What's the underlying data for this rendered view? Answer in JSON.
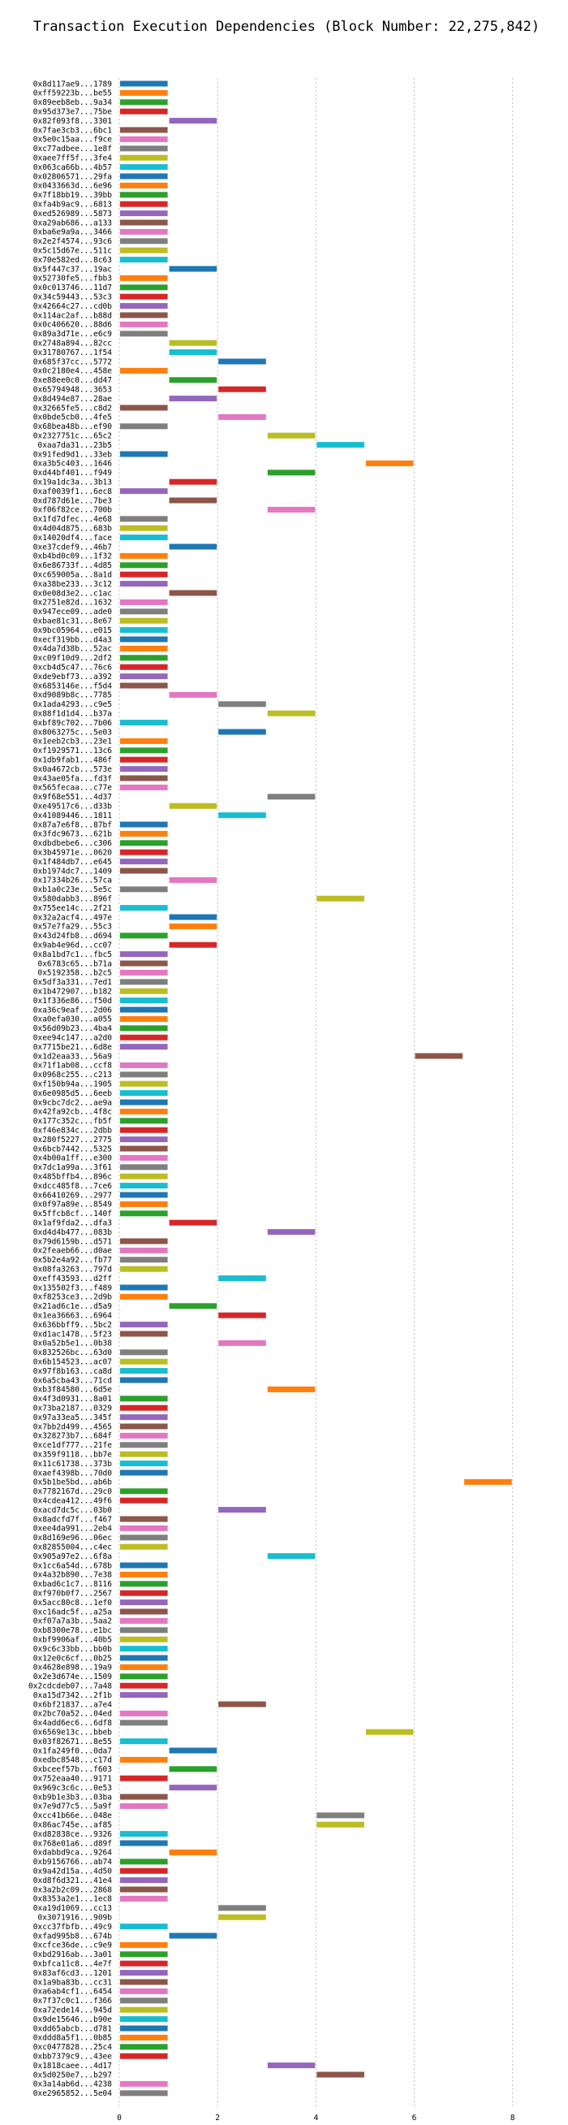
{
  "chart_data": {
    "type": "bar",
    "orientation": "horizontal",
    "title": "Transaction Execution Dependencies (Block Number: 22,275,842)",
    "xlabel": "",
    "ylabel": "",
    "xlim": [
      0,
      8.5
    ],
    "xticks": [
      0,
      2,
      4,
      6,
      8
    ],
    "grid": "vertical",
    "colors": [
      "#1f77b4",
      "#ff7f0e",
      "#2ca02c",
      "#d62728",
      "#9467bd",
      "#8c564b",
      "#e377c2",
      "#7f7f7f",
      "#bcbd22",
      "#17becf"
    ],
    "rows": [
      [
        "0x8d117ae9...1789",
        0,
        1
      ],
      [
        "0xff59223b...be55",
        0,
        1
      ],
      [
        "0x89eeb8eb...9a34",
        0,
        1
      ],
      [
        "0x95d373e7...75be",
        0,
        1
      ],
      [
        "0x82f093f8...3301",
        1,
        2
      ],
      [
        "0x7fae3cb3...6bc1",
        0,
        1
      ],
      [
        "0x5e0c15aa...f9ce",
        0,
        1
      ],
      [
        "0xc77adbee...1e8f",
        0,
        1
      ],
      [
        "0xaee7ff5f...3fe4",
        0,
        1
      ],
      [
        "0x063ca66b...4b57",
        0,
        1
      ],
      [
        "0x02806571...29fa",
        0,
        1
      ],
      [
        "0x0433663d...6e96",
        0,
        1
      ],
      [
        "0x7f18bb19...39bb",
        0,
        1
      ],
      [
        "0xfa4b9ac9...6813",
        0,
        1
      ],
      [
        "0xed526989...5873",
        0,
        1
      ],
      [
        "0xa29ab686...a133",
        0,
        1
      ],
      [
        "0xba6e9a9a...3466",
        0,
        1
      ],
      [
        "0x2e2f4574...93c6",
        0,
        1
      ],
      [
        "0x5c15d67e...511c",
        0,
        1
      ],
      [
        "0x70e582ed...8c63",
        0,
        1
      ],
      [
        "0x5f447c37...19ac",
        1,
        2
      ],
      [
        "0x52730fe5...fbb3",
        0,
        1
      ],
      [
        "0x0c013746...11d7",
        0,
        1
      ],
      [
        "0x34c59443...53c3",
        0,
        1
      ],
      [
        "0x42664c27...cd0b",
        0,
        1
      ],
      [
        "0x114ac2af...b88d",
        0,
        1
      ],
      [
        "0x0c406620...88d6",
        0,
        1
      ],
      [
        "0x89a3d71e...e6c9",
        0,
        1
      ],
      [
        "0x2748a894...82cc",
        1,
        2
      ],
      [
        "0x31780767...1f54",
        1,
        2
      ],
      [
        "0x685f37cc...5772",
        2,
        3
      ],
      [
        "0x0c2180e4...458e",
        0,
        1
      ],
      [
        "0xe88ee0c0...dd47",
        1,
        2
      ],
      [
        "0x65794948...3653",
        2,
        3
      ],
      [
        "0x8d494e87...28ae",
        1,
        2
      ],
      [
        "0x32665fe5...c8d2",
        0,
        1
      ],
      [
        "0x0bde5cb0...4fe5",
        2,
        3
      ],
      [
        "0x68bea48b...ef90",
        0,
        1
      ],
      [
        "0x2327751c...65c2",
        3,
        4
      ],
      [
        "0xaa7da31...23b5",
        4,
        5
      ],
      [
        "0x91fed9d1...33eb",
        0,
        1
      ],
      [
        "0xa3b5c403...1646",
        5,
        6
      ],
      [
        "0xd44bf401...f949",
        3,
        4
      ],
      [
        "0x19a1dc3a...3b13",
        1,
        2
      ],
      [
        "0xaf0039f1...6ec8",
        0,
        1
      ],
      [
        "0xd787d61e...7be3",
        1,
        2
      ],
      [
        "0xf06f82ce...700b",
        3,
        4
      ],
      [
        "0x1fd7dfec...4e68",
        0,
        1
      ],
      [
        "0x4d04d875...683b",
        0,
        1
      ],
      [
        "0x14020df4...face",
        0,
        1
      ],
      [
        "0xe37cdef9...46b7",
        1,
        2
      ],
      [
        "0xb4bd0c09...1f32",
        0,
        1
      ],
      [
        "0x6e86733f...4d85",
        0,
        1
      ],
      [
        "0xc659005a...8a1d",
        0,
        1
      ],
      [
        "0xa38be233...3c12",
        0,
        1
      ],
      [
        "0x0e08d3e2...c1ac",
        1,
        2
      ],
      [
        "0x2751e82d...1632",
        0,
        1
      ],
      [
        "0x947ece09...ade0",
        0,
        1
      ],
      [
        "0xbae81c31...8e67",
        0,
        1
      ],
      [
        "0x9bc05964...e015",
        0,
        1
      ],
      [
        "0xecf319bb...d4a3",
        0,
        1
      ],
      [
        "0x4da7d38b...52ac",
        0,
        1
      ],
      [
        "0xc09f10d9...2df2",
        0,
        1
      ],
      [
        "0xcb4d5c47...76c6",
        0,
        1
      ],
      [
        "0xde9ebf73...a392",
        0,
        1
      ],
      [
        "0x6853146e...f5d4",
        0,
        1
      ],
      [
        "0xd9089b8c...7785",
        1,
        2
      ],
      [
        "0x1ada4293...c9e5",
        2,
        3
      ],
      [
        "0x88f1d1d4...b37a",
        3,
        4
      ],
      [
        "0xbf89c702...7b06",
        0,
        1
      ],
      [
        "0x8063275c...5e03",
        2,
        3
      ],
      [
        "0x1eeb2cb3...23e1",
        0,
        1
      ],
      [
        "0xf1929571...13c6",
        0,
        1
      ],
      [
        "0x1db9fab1...486f",
        0,
        1
      ],
      [
        "0x0a4672cb...573e",
        0,
        1
      ],
      [
        "0x43ae05fa...fd3f",
        0,
        1
      ],
      [
        "0x565fecaa...c77e",
        0,
        1
      ],
      [
        "0x9f68e551...4d37",
        3,
        4
      ],
      [
        "0xe49517c6...d33b",
        1,
        2
      ],
      [
        "0x41089446...1811",
        2,
        3
      ],
      [
        "0x87a7e6f8...87bf",
        0,
        1
      ],
      [
        "0x3fdc9673...621b",
        0,
        1
      ],
      [
        "0xdbdbebe6...c306",
        0,
        1
      ],
      [
        "0x3b45971e...0620",
        0,
        1
      ],
      [
        "0x1f484db7...e645",
        0,
        1
      ],
      [
        "0xb1974dc7...1409",
        0,
        1
      ],
      [
        "0x17334b26...57ca",
        1,
        2
      ],
      [
        "0xb1a0c23e...5e5c",
        0,
        1
      ],
      [
        "0x580dabb3...896f",
        4,
        5
      ],
      [
        "0x755ee14c...2f21",
        0,
        1
      ],
      [
        "0x32a2acf4...497e",
        1,
        2
      ],
      [
        "0x57e7fa29...55c3",
        1,
        2
      ],
      [
        "0x43d24fb8...d694",
        0,
        1
      ],
      [
        "0x9ab4e96d...cc07",
        1,
        2
      ],
      [
        "0x8a1bd7c1...fbc5",
        0,
        1
      ],
      [
        "0x6783c65...b71a",
        0,
        1
      ],
      [
        "0x5192358...b2c5",
        0,
        1
      ],
      [
        "0x5df3a331...7ed1",
        0,
        1
      ],
      [
        "0x1b472907...b182",
        0,
        1
      ],
      [
        "0x1f336e86...f50d",
        0,
        1
      ],
      [
        "0xa36c9eaf...2d06",
        0,
        1
      ],
      [
        "0xa0efa030...a055",
        0,
        1
      ],
      [
        "0x56d09b23...4ba4",
        0,
        1
      ],
      [
        "0xee94c147...a2d0",
        0,
        1
      ],
      [
        "0x7715be21...6d8e",
        0,
        1
      ],
      [
        "0x1d2eaa33...56a9",
        6,
        7
      ],
      [
        "0x71f1ab08...ccf8",
        0,
        1
      ],
      [
        "0x0968c255...c213",
        0,
        1
      ],
      [
        "0xf150b94a...1905",
        0,
        1
      ],
      [
        "0x6e0985d5...6eeb",
        0,
        1
      ],
      [
        "0x9cbc7dc2...ae9a",
        0,
        1
      ],
      [
        "0x42fa92cb...4f8c",
        0,
        1
      ],
      [
        "0x177c352c...fb5f",
        0,
        1
      ],
      [
        "0xf46e834c...2dbb",
        0,
        1
      ],
      [
        "0x280f5227...2775",
        0,
        1
      ],
      [
        "0x6bcb7442...5325",
        0,
        1
      ],
      [
        "0x4b00a1ff...e300",
        0,
        1
      ],
      [
        "0x7dc1a99a...3f61",
        0,
        1
      ],
      [
        "0x485bffb4...896c",
        0,
        1
      ],
      [
        "0xdcc485f8...7ce6",
        0,
        1
      ],
      [
        "0x66410269...2977",
        0,
        1
      ],
      [
        "0x0f97a89e...8549",
        0,
        1
      ],
      [
        "0x5ffcb8cf...140f",
        0,
        1
      ],
      [
        "0x1af9fda2...dfa3",
        1,
        2
      ],
      [
        "0xd4d4b477...083b",
        3,
        4
      ],
      [
        "0x79d6159b...d571",
        0,
        1
      ],
      [
        "0x2feaeb66...d0ae",
        0,
        1
      ],
      [
        "0x5b2e4a92...fb77",
        0,
        1
      ],
      [
        "0x08fa3263...797d",
        0,
        1
      ],
      [
        "0xeff43593...d2ff",
        2,
        3
      ],
      [
        "0x135502f3...f489",
        0,
        1
      ],
      [
        "0xf8253ce3...2d9b",
        0,
        1
      ],
      [
        "0x21ad6c1e...d5a9",
        1,
        2
      ],
      [
        "0x1ea36663...6964",
        2,
        3
      ],
      [
        "0x636bbff9...5bc2",
        0,
        1
      ],
      [
        "0xd1ac1478...5f23",
        0,
        1
      ],
      [
        "0x0a52b5e1...0b38",
        2,
        3
      ],
      [
        "0x832526bc...63d0",
        0,
        1
      ],
      [
        "0x6b154523...ac07",
        0,
        1
      ],
      [
        "0x97f8b163...ca8d",
        0,
        1
      ],
      [
        "0x6a5cba43...71cd",
        0,
        1
      ],
      [
        "0xb3f84580...6d5e",
        3,
        4
      ],
      [
        "0x4f3d0931...8a01",
        0,
        1
      ],
      [
        "0x73ba2187...0329",
        0,
        1
      ],
      [
        "0x97a33ea5...345f",
        0,
        1
      ],
      [
        "0x7bb2d499...4565",
        0,
        1
      ],
      [
        "0x328273b7...684f",
        0,
        1
      ],
      [
        "0xce1df777...21fe",
        0,
        1
      ],
      [
        "0x359f9118...bb7e",
        0,
        1
      ],
      [
        "0x11c61738...373b",
        0,
        1
      ],
      [
        "0xaef4398b...70d0",
        0,
        1
      ],
      [
        "0x5b1be5bd...ab6b",
        7,
        8
      ],
      [
        "0x7782167d...29c0",
        0,
        1
      ],
      [
        "0x4cdea412...49f6",
        0,
        1
      ],
      [
        "0xacd7dc5c...03b0",
        2,
        3
      ],
      [
        "0x8adcfd7f...f467",
        0,
        1
      ],
      [
        "0xee4da991...2eb4",
        0,
        1
      ],
      [
        "0x8d169e96...06ec",
        0,
        1
      ],
      [
        "0x82855004...c4ec",
        0,
        1
      ],
      [
        "0x905a97e2...6f8a",
        3,
        4
      ],
      [
        "0x1cc6a54d...678b",
        0,
        1
      ],
      [
        "0x4a32b890...7e38",
        0,
        1
      ],
      [
        "0xbad6c1c7...8116",
        0,
        1
      ],
      [
        "0xf970b0f7...2567",
        0,
        1
      ],
      [
        "0x5acc80c8...1ef0",
        0,
        1
      ],
      [
        "0xc16adc5f...a25a",
        0,
        1
      ],
      [
        "0xf07a7a3b...5aa2",
        0,
        1
      ],
      [
        "0xb8300e78...e1bc",
        0,
        1
      ],
      [
        "0xbf9906af...40b5",
        0,
        1
      ],
      [
        "0x9c6c33bb...bb0b",
        0,
        1
      ],
      [
        "0x12e0c6cf...0b25",
        0,
        1
      ],
      [
        "0x4628e898...19a9",
        0,
        1
      ],
      [
        "0x2e3d674e...1509",
        0,
        1
      ],
      [
        "0x2cdcdeb07...7a48",
        0,
        1
      ],
      [
        "0xa15d7342...2f1b",
        0,
        1
      ],
      [
        "0x6bf21837...a7e4",
        2,
        3
      ],
      [
        "0x2bc70a52...04ed",
        0,
        1
      ],
      [
        "0x4add6ec6...6df8",
        0,
        1
      ],
      [
        "0x6569e13c...bbeb",
        5,
        6
      ],
      [
        "0x03f82671...8e55",
        0,
        1
      ],
      [
        "0x1fa249f0...0da7",
        1,
        2
      ],
      [
        "0xedbc8548...c17d",
        0,
        1
      ],
      [
        "0xbceef57b...f603",
        1,
        2
      ],
      [
        "0x752eaa40...9171",
        0,
        1
      ],
      [
        "0x969c3c6c...0e53",
        1,
        2
      ],
      [
        "0xb9b1e3b3...03ba",
        0,
        1
      ],
      [
        "0x7e9d77c5...5a9f",
        0,
        1
      ],
      [
        "0xcc41b66e...048e",
        4,
        5
      ],
      [
        "0x86ac745e...af85",
        4,
        5
      ],
      [
        "0xd82838ce...9326",
        0,
        1
      ],
      [
        "0x768e01a6...d89f",
        0,
        1
      ],
      [
        "0xdabbd9ca...9264",
        1,
        2
      ],
      [
        "0xb9156766...ab74",
        0,
        1
      ],
      [
        "0x9a42d15a...4d50",
        0,
        1
      ],
      [
        "0xd8f6d321...41e4",
        0,
        1
      ],
      [
        "0x3a2b2c09...2868",
        0,
        1
      ],
      [
        "0x8353a2e1...1ec8",
        0,
        1
      ],
      [
        "0xa19d1069...cc13",
        2,
        3
      ],
      [
        "0x3071916...909b",
        2,
        3
      ],
      [
        "0xcc37fbfb...49c9",
        0,
        1
      ],
      [
        "0xfad995b8...674b",
        1,
        2
      ],
      [
        "0xcfce36de...c9e9",
        0,
        1
      ],
      [
        "0xbd2916ab...3a01",
        0,
        1
      ],
      [
        "0xbfca11c8...4e7f",
        0,
        1
      ],
      [
        "0x83af6cd3...1201",
        0,
        1
      ],
      [
        "0x1a9ba83b...cc31",
        0,
        1
      ],
      [
        "0xa6ab4cf1...6454",
        0,
        1
      ],
      [
        "0x7f37c0c1...f366",
        0,
        1
      ],
      [
        "0xa72ede14...945d",
        0,
        1
      ],
      [
        "0x9de15646...b90e",
        0,
        1
      ],
      [
        "0xdd65abcb...d781",
        0,
        1
      ],
      [
        "0xddd8a5f1...0b85",
        0,
        1
      ],
      [
        "0xc0477828...25c4",
        0,
        1
      ],
      [
        "0xbb7379c9...43ee",
        0,
        1
      ],
      [
        "0x1818caee...4d17",
        3,
        4
      ],
      [
        "0x5d0250e7...b297",
        4,
        5
      ],
      [
        "0x3a14ab6d...4238",
        0,
        1
      ],
      [
        "0xe2965852...5e04",
        0,
        1
      ]
    ]
  }
}
